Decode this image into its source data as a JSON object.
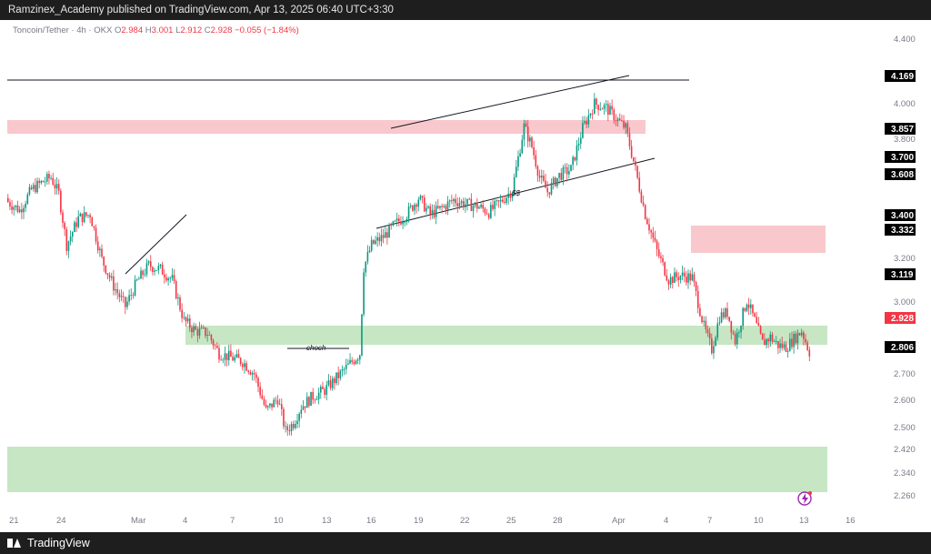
{
  "header": {
    "publisher_line": "Ramzinex_Academy published on TradingView.com, Apr 13, 2025 06:40 UTC+3:30"
  },
  "legend": {
    "symbol": "Toncoin/Tether · 4h · OKX",
    "o_label": "O",
    "o": "2.984",
    "h_label": "H",
    "h": "3.001",
    "l_label": "L",
    "l": "2.912",
    "c_label": "C",
    "c": "2.928",
    "change": "−0.055 (−1.84%)"
  },
  "footer": {
    "brand": "TradingView",
    "logo_icon": "tradingview-logo-icon"
  },
  "colors": {
    "up": "#089981",
    "down": "#f23645",
    "supply_zone": "#f8c8cc",
    "demand_zone": "#c6e6c4",
    "price_box_dark": "#000000",
    "last_price_box": "#f23645"
  },
  "chart_data": {
    "type": "candlestick",
    "symbol": "Toncoin/Tether",
    "interval": "4h",
    "exchange": "OKX",
    "ylim": [
      2.22,
      4.46
    ],
    "y_ticks": [
      "4.400",
      "4.000",
      "3.800",
      "3.200",
      "3.000",
      "2.700",
      "2.600",
      "2.500",
      "2.420",
      "2.340",
      "2.260"
    ],
    "x_ticks": [
      "21",
      "24",
      "Mar",
      "4",
      "7",
      "10",
      "13",
      "16",
      "19",
      "22",
      "25",
      "28",
      "Apr",
      "4",
      "7",
      "10",
      "13",
      "16"
    ],
    "price_labels": [
      "4.169",
      "3.857",
      "3.700",
      "3.608",
      "3.400",
      "3.332",
      "3.119",
      "2.806"
    ],
    "last_price": "2.928",
    "annotations": [
      "choch",
      "$$"
    ],
    "close_path": [
      [
        0,
        3.66
      ],
      [
        6,
        3.62
      ],
      [
        12,
        3.72
      ],
      [
        18,
        3.76
      ],
      [
        22,
        3.78
      ],
      [
        26,
        3.7
      ],
      [
        30,
        3.45
      ],
      [
        36,
        3.58
      ],
      [
        42,
        3.6
      ],
      [
        48,
        3.38
      ],
      [
        54,
        3.25
      ],
      [
        60,
        3.15
      ],
      [
        66,
        3.27
      ],
      [
        72,
        3.35
      ],
      [
        78,
        3.33
      ],
      [
        84,
        3.28
      ],
      [
        90,
        3.08
      ],
      [
        96,
        3.03
      ],
      [
        102,
        3.02
      ],
      [
        108,
        2.92
      ],
      [
        114,
        2.9
      ],
      [
        120,
        2.88
      ],
      [
        126,
        2.82
      ],
      [
        132,
        2.64
      ],
      [
        138,
        2.7
      ],
      [
        142,
        2.54
      ],
      [
        146,
        2.58
      ],
      [
        150,
        2.66
      ],
      [
        156,
        2.71
      ],
      [
        162,
        2.74
      ],
      [
        168,
        2.8
      ],
      [
        174,
        2.86
      ],
      [
        180,
        2.92
      ],
      [
        182,
        3.34
      ],
      [
        186,
        3.45
      ],
      [
        192,
        3.49
      ],
      [
        198,
        3.55
      ],
      [
        204,
        3.6
      ],
      [
        210,
        3.68
      ],
      [
        216,
        3.6
      ],
      [
        222,
        3.63
      ],
      [
        228,
        3.67
      ],
      [
        234,
        3.65
      ],
      [
        240,
        3.64
      ],
      [
        246,
        3.61
      ],
      [
        252,
        3.66
      ],
      [
        258,
        3.72
      ],
      [
        264,
        4.03
      ],
      [
        268,
        3.93
      ],
      [
        272,
        3.78
      ],
      [
        276,
        3.71
      ],
      [
        282,
        3.79
      ],
      [
        288,
        3.82
      ],
      [
        294,
        4.02
      ],
      [
        300,
        4.14
      ],
      [
        306,
        4.12
      ],
      [
        312,
        4.06
      ],
      [
        316,
        4.02
      ],
      [
        320,
        3.86
      ],
      [
        326,
        3.6
      ],
      [
        332,
        3.42
      ],
      [
        338,
        3.28
      ],
      [
        344,
        3.3
      ],
      [
        350,
        3.29
      ],
      [
        356,
        3.05
      ],
      [
        360,
        2.94
      ],
      [
        364,
        3.1
      ],
      [
        368,
        3.12
      ],
      [
        372,
        2.98
      ],
      [
        378,
        3.18
      ],
      [
        382,
        3.08
      ],
      [
        386,
        2.97
      ],
      [
        390,
        3.0
      ],
      [
        394,
        2.96
      ],
      [
        398,
        2.95
      ],
      [
        402,
        2.99
      ],
      [
        406,
        3.03
      ],
      [
        410,
        2.928
      ]
    ]
  }
}
